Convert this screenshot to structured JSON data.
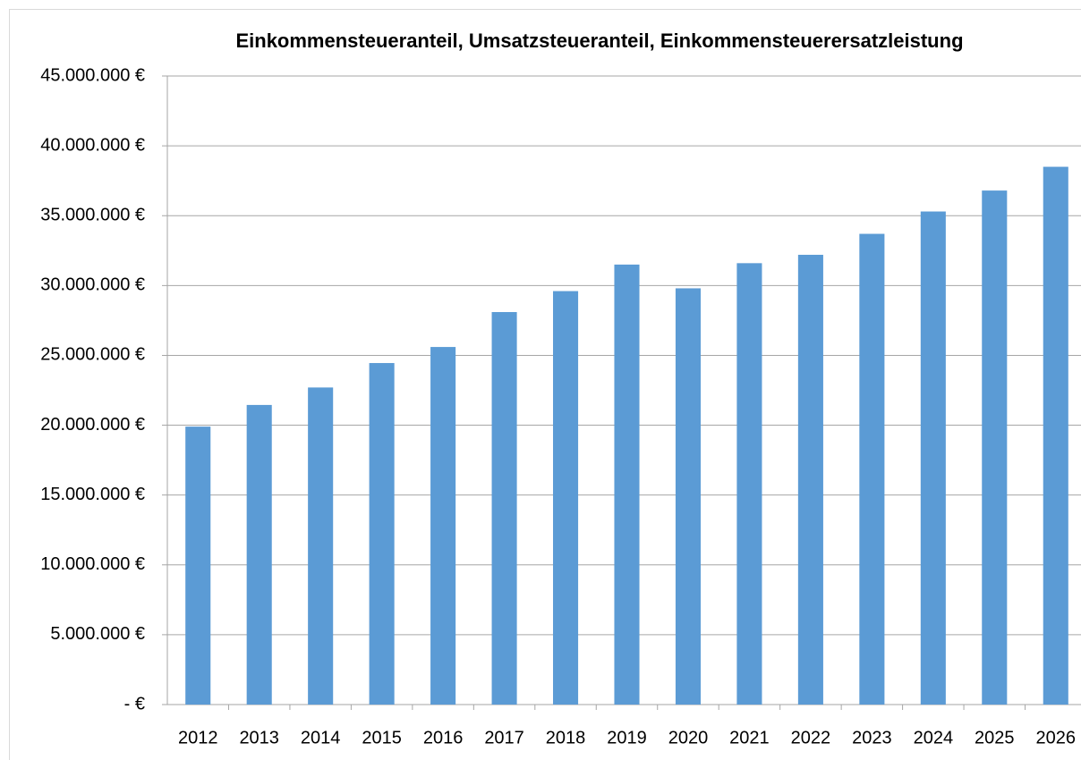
{
  "chart_data": {
    "type": "bar",
    "title": "Einkommensteueranteil, Umsatzsteueranteil, Einkommensteuerersatzleistung",
    "categories": [
      "2012",
      "2013",
      "2014",
      "2015",
      "2016",
      "2017",
      "2018",
      "2019",
      "2020",
      "2021",
      "2022",
      "2023",
      "2024",
      "2025",
      "2026"
    ],
    "values": [
      19900000,
      21450000,
      22700000,
      24450000,
      25600000,
      28100000,
      29600000,
      31500000,
      29800000,
      31600000,
      32200000,
      33700000,
      35300000,
      36800000,
      38500000
    ],
    "color": "#5b9bd5",
    "ylim": [
      0,
      45000000
    ],
    "yticks": [
      {
        "value": 0,
        "label": "-  €"
      },
      {
        "value": 5000000,
        "label": "5.000.000 €"
      },
      {
        "value": 10000000,
        "label": "10.000.000 €"
      },
      {
        "value": 15000000,
        "label": "15.000.000 €"
      },
      {
        "value": 20000000,
        "label": "20.000.000 €"
      },
      {
        "value": 25000000,
        "label": "25.000.000 €"
      },
      {
        "value": 30000000,
        "label": "30.000.000 €"
      },
      {
        "value": 35000000,
        "label": "35.000.000 €"
      },
      {
        "value": 40000000,
        "label": "40.000.000 €"
      },
      {
        "value": 45000000,
        "label": "45.000.000 €"
      }
    ],
    "grid": true
  }
}
